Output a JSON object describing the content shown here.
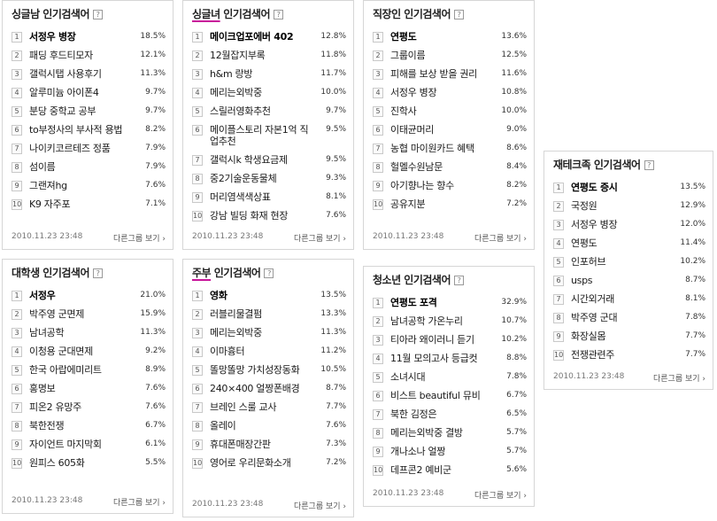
{
  "panels": [
    {
      "id": "single-men",
      "title_plain": "싱글남 인기검색어",
      "title_hl": "",
      "title_rest": "",
      "date": "2010.11.23 23:48",
      "more": "다른그룹 보기",
      "items": [
        {
          "rank": "1",
          "term": "서정우 병장",
          "pct": "18.5%"
        },
        {
          "rank": "2",
          "term": "패딩 후드티모자",
          "pct": "12.1%"
        },
        {
          "rank": "3",
          "term": "갤럭시탭 사용후기",
          "pct": "11.3%"
        },
        {
          "rank": "4",
          "term": "알루미늄 아이폰4",
          "pct": "9.7%"
        },
        {
          "rank": "5",
          "term": "분당 중학교 공부",
          "pct": "9.7%"
        },
        {
          "rank": "6",
          "term": "to부정사의 부사적 용법",
          "pct": "8.2%"
        },
        {
          "rank": "7",
          "term": "나이키코르테즈 정품",
          "pct": "7.9%"
        },
        {
          "rank": "8",
          "term": "섬이름",
          "pct": "7.9%"
        },
        {
          "rank": "9",
          "term": "그랜져hg",
          "pct": "7.6%"
        },
        {
          "rank": "10",
          "term": "K9 자주포",
          "pct": "7.1%"
        }
      ]
    },
    {
      "id": "single-women",
      "title_plain": "",
      "title_hl": "싱글녀",
      "title_rest": " 인기검색어",
      "date": "2010.11.23 23:48",
      "more": "다른그룹 보기",
      "items": [
        {
          "rank": "1",
          "term": "메이크업포에버 402",
          "pct": "12.8%"
        },
        {
          "rank": "2",
          "term": "12월잡지부록",
          "pct": "11.8%"
        },
        {
          "rank": "3",
          "term": "h&m 랑방",
          "pct": "11.7%"
        },
        {
          "rank": "4",
          "term": "메리는외박중",
          "pct": "10.0%"
        },
        {
          "rank": "5",
          "term": "스릴러영화추천",
          "pct": "9.7%"
        },
        {
          "rank": "6",
          "term": "메이플스토리 자본1억 직업추천",
          "pct": "9.5%"
        },
        {
          "rank": "7",
          "term": "갤럭시k 학생요금제",
          "pct": "9.5%"
        },
        {
          "rank": "8",
          "term": "중2기술운동물체",
          "pct": "9.3%"
        },
        {
          "rank": "9",
          "term": "머리염색색상표",
          "pct": "8.1%"
        },
        {
          "rank": "10",
          "term": "강남 빌딩 화재 현장",
          "pct": "7.6%"
        }
      ]
    },
    {
      "id": "workers",
      "title_plain": "직장인 인기검색어",
      "title_hl": "",
      "title_rest": "",
      "date": "2010.11.23 23:48",
      "more": "다른그룹 보기",
      "items": [
        {
          "rank": "1",
          "term": "연평도",
          "pct": "13.6%"
        },
        {
          "rank": "2",
          "term": "그룹이름",
          "pct": "12.5%"
        },
        {
          "rank": "3",
          "term": "피해를 보상 받을 권리",
          "pct": "11.6%"
        },
        {
          "rank": "4",
          "term": "서정우 병장",
          "pct": "10.8%"
        },
        {
          "rank": "5",
          "term": "진학사",
          "pct": "10.0%"
        },
        {
          "rank": "6",
          "term": "이태균머리",
          "pct": "9.0%"
        },
        {
          "rank": "7",
          "term": "농협 마이원카드 혜택",
          "pct": "8.6%"
        },
        {
          "rank": "8",
          "term": "헐멜수원남문",
          "pct": "8.4%"
        },
        {
          "rank": "9",
          "term": "아기향나는 향수",
          "pct": "8.2%"
        },
        {
          "rank": "10",
          "term": "공유지분",
          "pct": "7.2%"
        }
      ]
    },
    {
      "id": "investors",
      "title_plain": "재테크족 인기검색어",
      "title_hl": "",
      "title_rest": "",
      "date": "2010.11.23 23:48",
      "more": "다른그룹 보기",
      "items": [
        {
          "rank": "1",
          "term": "연평도 증시",
          "pct": "13.5%"
        },
        {
          "rank": "2",
          "term": "국정원",
          "pct": "12.9%"
        },
        {
          "rank": "3",
          "term": "서정우 병장",
          "pct": "12.0%"
        },
        {
          "rank": "4",
          "term": "연평도",
          "pct": "11.4%"
        },
        {
          "rank": "5",
          "term": "인포허브",
          "pct": "10.2%"
        },
        {
          "rank": "6",
          "term": "usps",
          "pct": "8.7%"
        },
        {
          "rank": "7",
          "term": "시간외거래",
          "pct": "8.1%"
        },
        {
          "rank": "8",
          "term": "박주영 군대",
          "pct": "7.8%"
        },
        {
          "rank": "9",
          "term": "화장실몸",
          "pct": "7.7%"
        },
        {
          "rank": "10",
          "term": "전쟁관련주",
          "pct": "7.7%"
        }
      ]
    },
    {
      "id": "college",
      "title_plain": "대학생 인기검색어",
      "title_hl": "",
      "title_rest": "",
      "date": "2010.11.23 23:48",
      "more": "다른그룹 보기",
      "items": [
        {
          "rank": "1",
          "term": "서정우",
          "pct": "21.0%"
        },
        {
          "rank": "2",
          "term": "박주영 군면제",
          "pct": "15.9%"
        },
        {
          "rank": "3",
          "term": "남녀공학",
          "pct": "11.3%"
        },
        {
          "rank": "4",
          "term": "이청용 군대면제",
          "pct": "9.2%"
        },
        {
          "rank": "5",
          "term": "한국 아랍에미리트",
          "pct": "8.9%"
        },
        {
          "rank": "6",
          "term": "홍명보",
          "pct": "7.6%"
        },
        {
          "rank": "7",
          "term": "피온2 유망주",
          "pct": "7.6%"
        },
        {
          "rank": "8",
          "term": "북한전쟁",
          "pct": "6.7%"
        },
        {
          "rank": "9",
          "term": "자이언트 마지막회",
          "pct": "6.1%"
        },
        {
          "rank": "10",
          "term": "원피스 605화",
          "pct": "5.5%"
        }
      ]
    },
    {
      "id": "housewives",
      "title_plain": "",
      "title_hl": "주부",
      "title_rest": " 인기검색어",
      "date": "2010.11.23 23:48",
      "more": "다른그룹 보기",
      "items": [
        {
          "rank": "1",
          "term": "영화",
          "pct": "13.5%"
        },
        {
          "rank": "2",
          "term": "러블리물결펌",
          "pct": "13.3%"
        },
        {
          "rank": "3",
          "term": "메리는외박중",
          "pct": "11.3%"
        },
        {
          "rank": "4",
          "term": "이마흉터",
          "pct": "11.2%"
        },
        {
          "rank": "5",
          "term": "똘망똘망 가치성장동화",
          "pct": "10.5%"
        },
        {
          "rank": "6",
          "term": "240×400 얼짱폰배경",
          "pct": "8.7%"
        },
        {
          "rank": "7",
          "term": "브레인 스룰 교사",
          "pct": "7.7%"
        },
        {
          "rank": "8",
          "term": "올레이",
          "pct": "7.6%"
        },
        {
          "rank": "9",
          "term": "휴대폰매장간판",
          "pct": "7.3%"
        },
        {
          "rank": "10",
          "term": "영어로 우리문화소개",
          "pct": "7.2%"
        }
      ]
    },
    {
      "id": "teens",
      "title_plain": "청소년 인기검색어",
      "title_hl": "",
      "title_rest": "",
      "date": "2010.11.23 23:48",
      "more": "다른그룹 보기",
      "items": [
        {
          "rank": "1",
          "term": "연평도 포격",
          "pct": "32.9%"
        },
        {
          "rank": "2",
          "term": "남녀공학 가온누리",
          "pct": "10.7%"
        },
        {
          "rank": "3",
          "term": "티아라 왜이러니 듣기",
          "pct": "10.2%"
        },
        {
          "rank": "4",
          "term": "11월 모의고사 등급컷",
          "pct": "8.8%"
        },
        {
          "rank": "5",
          "term": "소녀시대",
          "pct": "7.8%"
        },
        {
          "rank": "6",
          "term": "비스트 beautiful 뮤비",
          "pct": "6.7%"
        },
        {
          "rank": "7",
          "term": "북한 김정은",
          "pct": "6.5%"
        },
        {
          "rank": "8",
          "term": "메리는외박중 결방",
          "pct": "5.7%"
        },
        {
          "rank": "9",
          "term": "개나소나 얼짱",
          "pct": "5.7%"
        },
        {
          "rank": "10",
          "term": "데프콘2 예비군",
          "pct": "5.6%"
        }
      ]
    }
  ]
}
